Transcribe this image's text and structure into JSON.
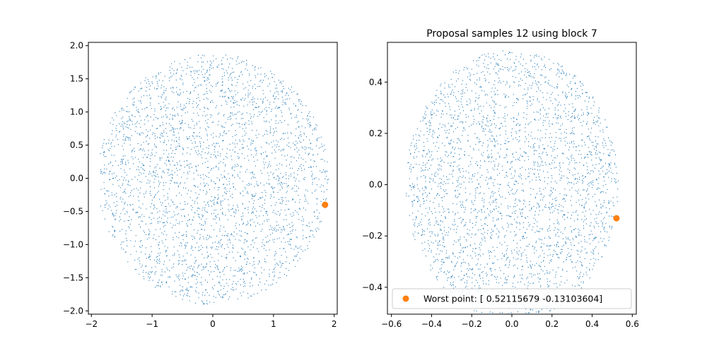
{
  "chart_data": [
    {
      "type": "scatter",
      "title": "",
      "xlabel": "",
      "ylabel": "",
      "xlim": [
        -2.05,
        2.05
      ],
      "ylim": [
        -2.05,
        2.05
      ],
      "x_ticks": [
        -2,
        -1,
        0,
        1,
        2
      ],
      "x_tick_labels": [
        "−2",
        "−1",
        "0",
        "1",
        "2"
      ],
      "y_ticks": [
        2.0,
        1.5,
        1.0,
        0.5,
        0.0,
        -0.5,
        -1.0,
        -1.5,
        -2.0
      ],
      "y_tick_labels": [
        "2.0",
        "1.5",
        "1.0",
        "0.5",
        "0.0",
        "−0.5",
        "−1.0",
        "−1.5",
        "−2.0"
      ],
      "grid": false,
      "series": [
        {
          "kind": "sample-cloud",
          "shape": "disk",
          "center": [
            0.0,
            0.0
          ],
          "radius": 1.9,
          "approx_count": 3000,
          "color": "#1f77b4"
        },
        {
          "kind": "highlight-point",
          "x": [
            1.85
          ],
          "y": [
            -0.4
          ],
          "color": "#ff7f0e"
        }
      ]
    },
    {
      "type": "scatter",
      "title": "Proposal samples 12 using block 7",
      "xlabel": "",
      "ylabel": "",
      "xlim": [
        -0.62,
        0.62
      ],
      "ylim": [
        -0.505,
        0.555
      ],
      "x_ticks": [
        -0.6,
        -0.4,
        -0.2,
        0.0,
        0.2,
        0.4,
        0.6
      ],
      "x_tick_labels": [
        "−0.6",
        "−0.4",
        "−0.2",
        "0.0",
        "0.2",
        "0.4",
        "0.6"
      ],
      "y_ticks": [
        0.4,
        0.2,
        0.0,
        -0.2,
        -0.4
      ],
      "y_tick_labels": [
        "0.4",
        "0.2",
        "0.0",
        "−0.2",
        "−0.4"
      ],
      "grid": false,
      "legend_location": "lower-center",
      "series": [
        {
          "kind": "sample-cloud",
          "shape": "disk",
          "center": [
            0.0,
            0.0
          ],
          "radius": 0.53,
          "approx_count": 3000,
          "color": "#1f77b4"
        },
        {
          "kind": "highlight-point",
          "name": "Worst point: [ 0.52115679 -0.13103604]",
          "x": [
            0.52115679
          ],
          "y": [
            -0.13103604
          ],
          "color": "#ff7f0e"
        }
      ]
    }
  ]
}
